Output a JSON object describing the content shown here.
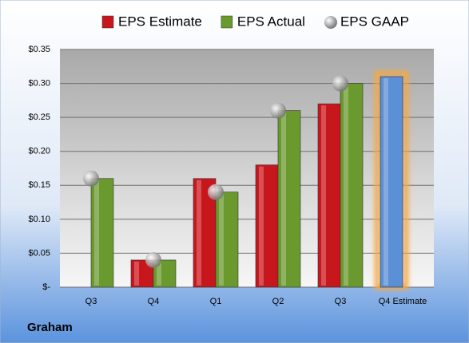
{
  "chart_data": {
    "type": "bar",
    "categories": [
      "Q3",
      "Q4",
      "Q1",
      "Q2",
      "Q3",
      "Q4 Estimate"
    ],
    "series": [
      {
        "name": "EPS Estimate",
        "color": "#c8161d",
        "values": [
          null,
          0.04,
          0.16,
          0.18,
          0.27,
          0.31
        ]
      },
      {
        "name": "EPS Actual",
        "color": "#6a9a2e",
        "values": [
          0.16,
          0.04,
          0.14,
          0.26,
          0.3,
          null
        ]
      },
      {
        "name": "EPS GAAP",
        "color": "#a9a9a9",
        "values": [
          0.16,
          0.04,
          0.14,
          0.26,
          0.3,
          null
        ],
        "marker": "circle"
      }
    ],
    "highlight": {
      "series": 0,
      "index": 5,
      "color": "#5b8fd6",
      "glow": "#f5a742"
    },
    "ylim": [
      0,
      0.35
    ],
    "yticks": [
      {
        "value": 0,
        "label": "$-"
      },
      {
        "value": 0.05,
        "label": "$0.05"
      },
      {
        "value": 0.1,
        "label": "$0.10"
      },
      {
        "value": 0.15,
        "label": "$0.15"
      },
      {
        "value": 0.2,
        "label": "$0.20"
      },
      {
        "value": 0.25,
        "label": "$0.25"
      },
      {
        "value": 0.3,
        "label": "$0.30"
      },
      {
        "value": 0.35,
        "label": "$0.35"
      }
    ],
    "grid": true,
    "legend": "top",
    "footer": "Graham"
  }
}
